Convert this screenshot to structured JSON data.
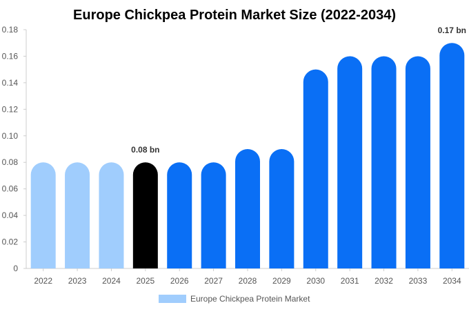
{
  "chart_data": {
    "type": "bar",
    "title": "Europe Chickpea Protein Market Size (2022-2034)",
    "xlabel": "",
    "ylabel": "",
    "categories": [
      "2022",
      "2023",
      "2024",
      "2025",
      "2026",
      "2027",
      "2028",
      "2029",
      "2030",
      "2031",
      "2032",
      "2033",
      "2034"
    ],
    "series": [
      {
        "name": "Europe Chickpea Protein Market",
        "values": [
          0.08,
          0.08,
          0.08,
          0.08,
          0.08,
          0.08,
          0.09,
          0.09,
          0.15,
          0.16,
          0.16,
          0.16,
          0.17
        ]
      }
    ],
    "ylim": [
      0,
      0.18
    ],
    "yticks": [
      0,
      0.02,
      0.04,
      0.06,
      0.08,
      0.1,
      0.12,
      0.14,
      0.16,
      0.18
    ],
    "ytick_labels": [
      "0",
      "0.02",
      "0.04",
      "0.06",
      "0.08",
      "0.10",
      "0.12",
      "0.14",
      "0.16",
      "0.18"
    ],
    "grid": false,
    "legend_position": "bottom-center",
    "annotations": [
      {
        "category": "2025",
        "text": "0.08 bn"
      },
      {
        "category": "2034",
        "text": "0.17 bn"
      }
    ],
    "bar_colors": [
      "#a0cdfd",
      "#a0cdfd",
      "#a0cdfd",
      "#000000",
      "#0a6ff5",
      "#0a6ff5",
      "#0a6ff5",
      "#0a6ff5",
      "#0a6ff5",
      "#0a6ff5",
      "#0a6ff5",
      "#0a6ff5",
      "#0a6ff5"
    ],
    "legend_color": "#a0cdfd"
  }
}
